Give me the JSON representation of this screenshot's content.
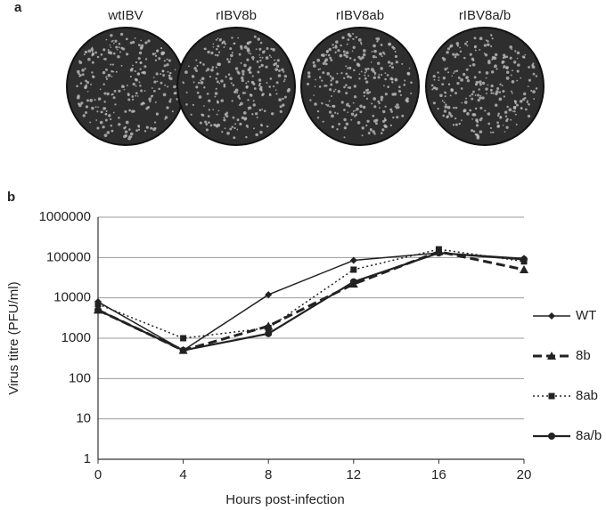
{
  "panel_a": {
    "label": "a",
    "plates": [
      "wtIBV",
      "rIBV8b",
      "rIBV8ab",
      "rIBV8a/b"
    ]
  },
  "chart_data": {
    "type": "line",
    "panel_label": "b",
    "x_label": "Hours post-infection",
    "y_label": "Virus titre (PFU/ml)",
    "x": [
      0,
      4,
      8,
      12,
      16,
      20
    ],
    "xlim": [
      0,
      20
    ],
    "xticks": [
      0,
      4,
      8,
      12,
      16,
      20
    ],
    "ylim": [
      1,
      1000000
    ],
    "yticks": [
      1,
      10,
      100,
      1000,
      10000,
      100000,
      1000000
    ],
    "log_y": true,
    "grid": true,
    "legend": "right",
    "series": [
      {
        "name": "WT",
        "color": "#222222",
        "dash": "solid",
        "width": 1.5,
        "marker": "diamond",
        "values": [
          8000,
          500,
          12000,
          85000,
          130000,
          95000
        ]
      },
      {
        "name": "8b",
        "color": "#222222",
        "dash": "dashed",
        "width": 3,
        "marker": "triangle",
        "values": [
          5000,
          500,
          2000,
          22000,
          140000,
          50000
        ]
      },
      {
        "name": "8ab",
        "color": "#222222",
        "dash": "dotted",
        "width": 1.5,
        "marker": "square",
        "values": [
          7000,
          1000,
          1800,
          50000,
          160000,
          80000
        ]
      },
      {
        "name": "8a/b",
        "color": "#222222",
        "dash": "solid",
        "width": 2.2,
        "marker": "circle",
        "values": [
          5000,
          500,
          1300,
          25000,
          130000,
          90000
        ]
      }
    ]
  }
}
